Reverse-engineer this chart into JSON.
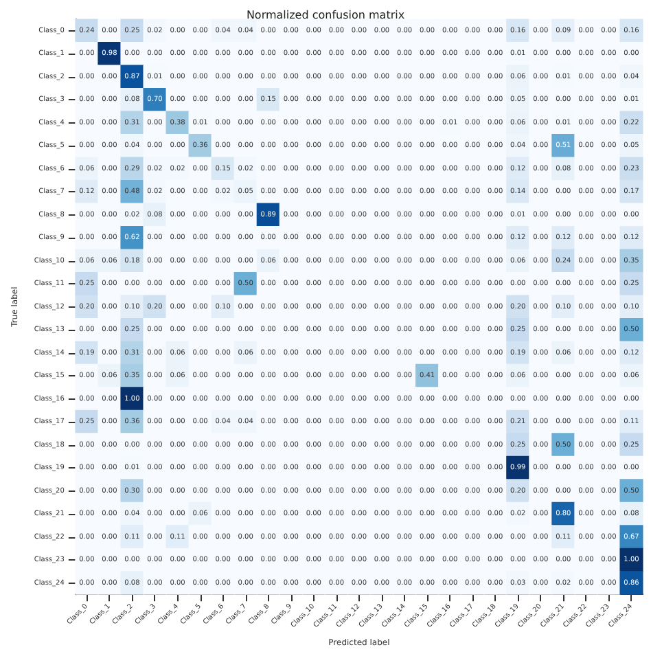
{
  "chart_data": {
    "type": "heatmap",
    "title": "Normalized confusion matrix",
    "xlabel": "Predicted label",
    "ylabel": "True label",
    "categories": [
      "Class_0",
      "Class_1",
      "Class_2",
      "Class_3",
      "Class_4",
      "Class_5",
      "Class_6",
      "Class_7",
      "Class_8",
      "Class_9",
      "Class_10",
      "Class_11",
      "Class_12",
      "Class_13",
      "Class_14",
      "Class_15",
      "Class_16",
      "Class_17",
      "Class_18",
      "Class_19",
      "Class_20",
      "Class_21",
      "Class_22",
      "Class_23",
      "Class_24"
    ],
    "y_categories": [
      "Class_0",
      "Class_1",
      "Class_2",
      "Class_3",
      "Class_4",
      "Class_5",
      "Class_6",
      "Class_7",
      "Class_8",
      "Class_9",
      "Class_10",
      "Class_11",
      "Class_12",
      "Class_13",
      "Class_14",
      "Class_15",
      "Class_16",
      "Class_17",
      "Class_18",
      "Class_19",
      "Class_20",
      "Class_21",
      "Class_22",
      "Class_23",
      "Class_24"
    ],
    "cell_labels": [
      [
        "0.24",
        "0.00",
        "0.25",
        "0.02",
        "0.00",
        "0.00",
        "0.04",
        "0.04",
        "0.00",
        "0.00",
        "0.00",
        "0.00",
        "0.00",
        "0.00",
        "0.00",
        "0.00",
        "0.00",
        "0.00",
        "0.00",
        "0.16",
        "0.00",
        "0.09",
        "0.00",
        "0.00",
        "0.16"
      ],
      [
        "0.00",
        "0.98",
        "0.00",
        "0.00",
        "0.00",
        "0.00",
        "0.00",
        "0.00",
        "0.00",
        "0.00",
        "0.00",
        "0.00",
        "0.00",
        "0.00",
        "0.00",
        "0.00",
        "0.00",
        "0.00",
        "0.00",
        "0.01",
        "0.00",
        "0.00",
        "0.00",
        "0.00",
        "0.00"
      ],
      [
        "0.00",
        "0.00",
        "0.87",
        "0.01",
        "0.00",
        "0.00",
        "0.00",
        "0.00",
        "0.00",
        "0.00",
        "0.00",
        "0.00",
        "0.00",
        "0.00",
        "0.00",
        "0.00",
        "0.00",
        "0.00",
        "0.00",
        "0.06",
        "0.00",
        "0.01",
        "0.00",
        "0.00",
        "0.04"
      ],
      [
        "0.00",
        "0.00",
        "0.08",
        "0.70",
        "0.00",
        "0.00",
        "0.00",
        "0.00",
        "0.15",
        "0.00",
        "0.00",
        "0.00",
        "0.00",
        "0.00",
        "0.00",
        "0.00",
        "0.00",
        "0.00",
        "0.00",
        "0.05",
        "0.00",
        "0.00",
        "0.00",
        "0.00",
        "0.01"
      ],
      [
        "0.00",
        "0.00",
        "0.31",
        "0.00",
        "0.38",
        "0.01",
        "0.00",
        "0.00",
        "0.00",
        "0.00",
        "0.00",
        "0.00",
        "0.00",
        "0.00",
        "0.00",
        "0.00",
        "0.01",
        "0.00",
        "0.00",
        "0.06",
        "0.00",
        "0.01",
        "0.00",
        "0.00",
        "0.22"
      ],
      [
        "0.00",
        "0.00",
        "0.04",
        "0.00",
        "0.00",
        "0.36",
        "0.00",
        "0.00",
        "0.00",
        "0.00",
        "0.00",
        "0.00",
        "0.00",
        "0.00",
        "0.00",
        "0.00",
        "0.00",
        "0.00",
        "0.00",
        "0.04",
        "0.00",
        "0.51",
        "0.00",
        "0.00",
        "0.05"
      ],
      [
        "0.06",
        "0.00",
        "0.29",
        "0.02",
        "0.02",
        "0.00",
        "0.15",
        "0.02",
        "0.00",
        "0.00",
        "0.00",
        "0.00",
        "0.00",
        "0.00",
        "0.00",
        "0.00",
        "0.00",
        "0.00",
        "0.00",
        "0.12",
        "0.00",
        "0.08",
        "0.00",
        "0.00",
        "0.23"
      ],
      [
        "0.12",
        "0.00",
        "0.48",
        "0.02",
        "0.00",
        "0.00",
        "0.02",
        "0.05",
        "0.00",
        "0.00",
        "0.00",
        "0.00",
        "0.00",
        "0.00",
        "0.00",
        "0.00",
        "0.00",
        "0.00",
        "0.00",
        "0.14",
        "0.00",
        "0.00",
        "0.00",
        "0.00",
        "0.17"
      ],
      [
        "0.00",
        "0.00",
        "0.02",
        "0.08",
        "0.00",
        "0.00",
        "0.00",
        "0.00",
        "0.89",
        "0.00",
        "0.00",
        "0.00",
        "0.00",
        "0.00",
        "0.00",
        "0.00",
        "0.00",
        "0.00",
        "0.00",
        "0.01",
        "0.00",
        "0.00",
        "0.00",
        "0.00",
        "0.00"
      ],
      [
        "0.00",
        "0.00",
        "0.62",
        "0.00",
        "0.00",
        "0.00",
        "0.00",
        "0.00",
        "0.00",
        "0.00",
        "0.00",
        "0.00",
        "0.00",
        "0.00",
        "0.00",
        "0.00",
        "0.00",
        "0.00",
        "0.00",
        "0.12",
        "0.00",
        "0.12",
        "0.00",
        "0.00",
        "0.12"
      ],
      [
        "0.06",
        "0.06",
        "0.18",
        "0.00",
        "0.00",
        "0.00",
        "0.00",
        "0.00",
        "0.06",
        "0.00",
        "0.00",
        "0.00",
        "0.00",
        "0.00",
        "0.00",
        "0.00",
        "0.00",
        "0.00",
        "0.00",
        "0.06",
        "0.00",
        "0.24",
        "0.00",
        "0.00",
        "0.35"
      ],
      [
        "0.25",
        "0.00",
        "0.00",
        "0.00",
        "0.00",
        "0.00",
        "0.00",
        "0.50",
        "0.00",
        "0.00",
        "0.00",
        "0.00",
        "0.00",
        "0.00",
        "0.00",
        "0.00",
        "0.00",
        "0.00",
        "0.00",
        "0.00",
        "0.00",
        "0.00",
        "0.00",
        "0.00",
        "0.25"
      ],
      [
        "0.20",
        "0.00",
        "0.10",
        "0.20",
        "0.00",
        "0.00",
        "0.10",
        "0.00",
        "0.00",
        "0.00",
        "0.00",
        "0.00",
        "0.00",
        "0.00",
        "0.00",
        "0.00",
        "0.00",
        "0.00",
        "0.00",
        "0.20",
        "0.00",
        "0.10",
        "0.00",
        "0.00",
        "0.10"
      ],
      [
        "0.00",
        "0.00",
        "0.25",
        "0.00",
        "0.00",
        "0.00",
        "0.00",
        "0.00",
        "0.00",
        "0.00",
        "0.00",
        "0.00",
        "0.00",
        "0.00",
        "0.00",
        "0.00",
        "0.00",
        "0.00",
        "0.00",
        "0.25",
        "0.00",
        "0.00",
        "0.00",
        "0.00",
        "0.50"
      ],
      [
        "0.19",
        "0.00",
        "0.31",
        "0.00",
        "0.06",
        "0.00",
        "0.00",
        "0.06",
        "0.00",
        "0.00",
        "0.00",
        "0.00",
        "0.00",
        "0.00",
        "0.00",
        "0.00",
        "0.00",
        "0.00",
        "0.00",
        "0.19",
        "0.00",
        "0.06",
        "0.00",
        "0.00",
        "0.12"
      ],
      [
        "0.00",
        "0.06",
        "0.35",
        "0.00",
        "0.06",
        "0.00",
        "0.00",
        "0.00",
        "0.00",
        "0.00",
        "0.00",
        "0.00",
        "0.00",
        "0.00",
        "0.00",
        "0.41",
        "0.00",
        "0.00",
        "0.00",
        "0.06",
        "0.00",
        "0.00",
        "0.00",
        "0.00",
        "0.06"
      ],
      [
        "0.00",
        "0.00",
        "1.00",
        "0.00",
        "0.00",
        "0.00",
        "0.00",
        "0.00",
        "0.00",
        "0.00",
        "0.00",
        "0.00",
        "0.00",
        "0.00",
        "0.00",
        "0.00",
        "0.00",
        "0.00",
        "0.00",
        "0.00",
        "0.00",
        "0.00",
        "0.00",
        "0.00",
        "0.00"
      ],
      [
        "0.25",
        "0.00",
        "0.36",
        "0.00",
        "0.00",
        "0.00",
        "0.04",
        "0.04",
        "0.00",
        "0.00",
        "0.00",
        "0.00",
        "0.00",
        "0.00",
        "0.00",
        "0.00",
        "0.00",
        "0.00",
        "0.00",
        "0.21",
        "0.00",
        "0.00",
        "0.00",
        "0.00",
        "0.11"
      ],
      [
        "0.00",
        "0.00",
        "0.00",
        "0.00",
        "0.00",
        "0.00",
        "0.00",
        "0.00",
        "0.00",
        "0.00",
        "0.00",
        "0.00",
        "0.00",
        "0.00",
        "0.00",
        "0.00",
        "0.00",
        "0.00",
        "0.00",
        "0.25",
        "0.00",
        "0.50",
        "0.00",
        "0.00",
        "0.25"
      ],
      [
        "0.00",
        "0.00",
        "0.01",
        "0.00",
        "0.00",
        "0.00",
        "0.00",
        "0.00",
        "0.00",
        "0.00",
        "0.00",
        "0.00",
        "0.00",
        "0.00",
        "0.00",
        "0.00",
        "0.00",
        "0.00",
        "0.00",
        "0.99",
        "0.00",
        "0.00",
        "0.00",
        "0.00",
        "0.00"
      ],
      [
        "0.00",
        "0.00",
        "0.30",
        "0.00",
        "0.00",
        "0.00",
        "0.00",
        "0.00",
        "0.00",
        "0.00",
        "0.00",
        "0.00",
        "0.00",
        "0.00",
        "0.00",
        "0.00",
        "0.00",
        "0.00",
        "0.00",
        "0.20",
        "0.00",
        "0.00",
        "0.00",
        "0.00",
        "0.50"
      ],
      [
        "0.00",
        "0.00",
        "0.04",
        "0.00",
        "0.00",
        "0.06",
        "0.00",
        "0.00",
        "0.00",
        "0.00",
        "0.00",
        "0.00",
        "0.00",
        "0.00",
        "0.00",
        "0.00",
        "0.00",
        "0.00",
        "0.00",
        "0.02",
        "0.00",
        "0.80",
        "0.00",
        "0.00",
        "0.08"
      ],
      [
        "0.00",
        "0.00",
        "0.11",
        "0.00",
        "0.11",
        "0.00",
        "0.00",
        "0.00",
        "0.00",
        "0.00",
        "0.00",
        "0.00",
        "0.00",
        "0.00",
        "0.00",
        "0.00",
        "0.00",
        "0.00",
        "0.00",
        "0.00",
        "0.00",
        "0.11",
        "0.00",
        "0.00",
        "0.67"
      ],
      [
        "0.00",
        "0.00",
        "0.00",
        "0.00",
        "0.00",
        "0.00",
        "0.00",
        "0.00",
        "0.00",
        "0.00",
        "0.00",
        "0.00",
        "0.00",
        "0.00",
        "0.00",
        "0.00",
        "0.00",
        "0.00",
        "0.00",
        "0.00",
        "0.00",
        "0.00",
        "0.00",
        "0.00",
        "1.00"
      ],
      [
        "0.00",
        "0.00",
        "0.08",
        "0.00",
        "0.00",
        "0.00",
        "0.00",
        "0.00",
        "0.00",
        "0.00",
        "0.00",
        "0.00",
        "0.00",
        "0.00",
        "0.00",
        "0.00",
        "0.00",
        "0.00",
        "0.00",
        "0.03",
        "0.00",
        "0.02",
        "0.00",
        "0.00",
        "0.86"
      ]
    ],
    "cells": [
      [
        0.24,
        0,
        0.25,
        0.02,
        0,
        0,
        0.04,
        0.04,
        0,
        0,
        0,
        0,
        0,
        0,
        0,
        0,
        0,
        0,
        0,
        0.16,
        0,
        0.09,
        0,
        0,
        0.16
      ],
      [
        0,
        0.98,
        0,
        0,
        0,
        0,
        0,
        0,
        0,
        0,
        0,
        0,
        0,
        0,
        0,
        0,
        0,
        0,
        0,
        0.01,
        0,
        0,
        0,
        0,
        0
      ],
      [
        0,
        0,
        0.87,
        0.01,
        0,
        0,
        0,
        0,
        0,
        0,
        0,
        0,
        0,
        0,
        0,
        0,
        0,
        0,
        0,
        0.06,
        0,
        0.01,
        0,
        0,
        0.04
      ],
      [
        0,
        0,
        0.08,
        0.7,
        0,
        0,
        0,
        0,
        0.15,
        0,
        0,
        0,
        0,
        0,
        0,
        0,
        0,
        0,
        0,
        0.05,
        0,
        0,
        0,
        0,
        0.01
      ],
      [
        0,
        0,
        0.31,
        0,
        0.38,
        0.01,
        0,
        0,
        0,
        0,
        0,
        0,
        0,
        0,
        0,
        0,
        0.01,
        0,
        0,
        0.06,
        0,
        0.01,
        0,
        0,
        0.22
      ],
      [
        0,
        0,
        0.04,
        0,
        0,
        0.36,
        0,
        0,
        0,
        0,
        0,
        0,
        0,
        0,
        0,
        0,
        0,
        0,
        0,
        0.04,
        0,
        0.51,
        0,
        0,
        0.05
      ],
      [
        0.06,
        0,
        0.29,
        0.02,
        0.02,
        0,
        0.15,
        0.02,
        0,
        0,
        0,
        0,
        0,
        0,
        0,
        0,
        0,
        0,
        0,
        0.12,
        0,
        0.08,
        0,
        0,
        0.23
      ],
      [
        0.12,
        0,
        0.48,
        0.02,
        0,
        0,
        0.02,
        0.05,
        0,
        0,
        0,
        0,
        0,
        0,
        0,
        0,
        0,
        0,
        0,
        0.14,
        0,
        0,
        0,
        0,
        0.17
      ],
      [
        0,
        0,
        0.02,
        0.08,
        0,
        0,
        0,
        0,
        0.89,
        0,
        0,
        0,
        0,
        0,
        0,
        0,
        0,
        0,
        0,
        0.01,
        0,
        0,
        0,
        0,
        0
      ],
      [
        0,
        0,
        0.62,
        0,
        0,
        0,
        0,
        0,
        0,
        0,
        0,
        0,
        0,
        0,
        0,
        0,
        0,
        0,
        0,
        0.12,
        0,
        0.12,
        0,
        0,
        0.12
      ],
      [
        0.06,
        0.06,
        0.18,
        0,
        0,
        0,
        0,
        0,
        0.06,
        0,
        0,
        0,
        0,
        0,
        0,
        0,
        0,
        0,
        0,
        0.06,
        0,
        0.24,
        0,
        0,
        0.35
      ],
      [
        0.25,
        0,
        0,
        0,
        0,
        0,
        0,
        0.5,
        0,
        0,
        0,
        0,
        0,
        0,
        0,
        0,
        0,
        0,
        0,
        0,
        0,
        0,
        0,
        0,
        0.25
      ],
      [
        0.2,
        0,
        0.1,
        0.2,
        0,
        0,
        0.1,
        0,
        0,
        0,
        0,
        0,
        0,
        0,
        0,
        0,
        0,
        0,
        0,
        0.2,
        0,
        0.1,
        0,
        0,
        0.1
      ],
      [
        0,
        0,
        0.25,
        0,
        0,
        0,
        0,
        0,
        0,
        0,
        0,
        0,
        0,
        0,
        0,
        0,
        0,
        0,
        0,
        0.25,
        0,
        0,
        0,
        0,
        0.5
      ],
      [
        0.19,
        0,
        0.31,
        0,
        0.06,
        0,
        0,
        0.06,
        0,
        0,
        0,
        0,
        0,
        0,
        0,
        0,
        0,
        0,
        0,
        0.19,
        0,
        0.06,
        0,
        0,
        0.12
      ],
      [
        0,
        0.06,
        0.35,
        0,
        0.06,
        0,
        0,
        0,
        0,
        0,
        0,
        0,
        0,
        0,
        0,
        0.41,
        0,
        0,
        0,
        0.06,
        0,
        0,
        0,
        0,
        0.06
      ],
      [
        0,
        0,
        1,
        0,
        0,
        0,
        0,
        0,
        0,
        0,
        0,
        0,
        0,
        0,
        0,
        0,
        0,
        0,
        0,
        0,
        0,
        0,
        0,
        0,
        0
      ],
      [
        0.25,
        0,
        0.36,
        0,
        0,
        0,
        0.04,
        0.04,
        0,
        0,
        0,
        0,
        0,
        0,
        0,
        0,
        0,
        0,
        0,
        0.21,
        0,
        0,
        0,
        0,
        0.11
      ],
      [
        0,
        0,
        0,
        0,
        0,
        0,
        0,
        0,
        0,
        0,
        0,
        0,
        0,
        0,
        0,
        0,
        0,
        0,
        0,
        0.25,
        0,
        0.5,
        0,
        0,
        0.25
      ],
      [
        0,
        0,
        0.01,
        0,
        0,
        0,
        0,
        0,
        0,
        0,
        0,
        0,
        0,
        0,
        0,
        0,
        0,
        0,
        0,
        0.99,
        0,
        0,
        0,
        0,
        0
      ],
      [
        0,
        0,
        0.3,
        0,
        0,
        0,
        0,
        0,
        0,
        0,
        0,
        0,
        0,
        0,
        0,
        0,
        0,
        0,
        0,
        0.2,
        0,
        0,
        0,
        0,
        0.5
      ],
      [
        0,
        0,
        0.04,
        0,
        0,
        0.06,
        0,
        0,
        0,
        0,
        0,
        0,
        0,
        0,
        0,
        0,
        0,
        0,
        0,
        0.02,
        0,
        0.8,
        0,
        0,
        0.08
      ],
      [
        0,
        0,
        0.11,
        0,
        0.11,
        0,
        0,
        0,
        0,
        0,
        0,
        0,
        0,
        0,
        0,
        0,
        0,
        0,
        0,
        0,
        0,
        0.11,
        0,
        0,
        0.67
      ],
      [
        0,
        0,
        0,
        0,
        0,
        0,
        0,
        0,
        0,
        0,
        0,
        0,
        0,
        0,
        0,
        0,
        0,
        0,
        0,
        0,
        0,
        0,
        0,
        0,
        1
      ],
      [
        0,
        0,
        0.08,
        0,
        0,
        0,
        0,
        0,
        0,
        0,
        0,
        0,
        0,
        0,
        0,
        0,
        0,
        0,
        0,
        0.03,
        0,
        0.02,
        0,
        0,
        0.86
      ]
    ]
  }
}
